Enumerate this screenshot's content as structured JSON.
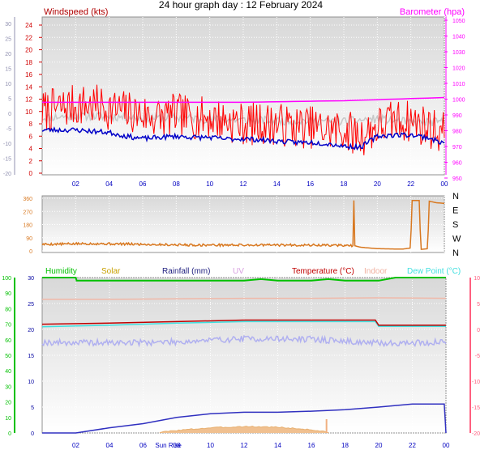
{
  "title": "24 hour graph day : 12 February 2024",
  "colors": {
    "windspeed": "#ff0000",
    "gust": "#c8c8c8",
    "avg_wind": "#0000c8",
    "barometer": "#ff00ff",
    "direction": "#d87820",
    "humidity": "#00c000",
    "solar": "#c8a000",
    "rainfall": "#4040c8",
    "uv": "#d8a0e0",
    "temperature": "#d00000",
    "indoor": "#f0b0a0",
    "dew_point": "#40e0e0",
    "left_axis": "#00c000",
    "right_axis": "#ff6080"
  },
  "x_ticks": [
    "02",
    "04",
    "06",
    "08",
    "10",
    "12",
    "14",
    "16",
    "18",
    "20",
    "22",
    "00"
  ],
  "sunrise_label": "Sun Rise",
  "chart_data": [
    {
      "type": "line",
      "title": "",
      "legend": [
        "Windspeed (kts)",
        "Barometer (hpa)"
      ],
      "y_left": {
        "ticks": [
          0,
          2,
          4,
          6,
          8,
          10,
          12,
          14,
          16,
          18,
          20,
          22,
          24
        ]
      },
      "y_left_outer": {
        "ticks": [
          -20,
          -15,
          -10,
          -5,
          0,
          5,
          10,
          15,
          20,
          25,
          30
        ]
      },
      "y_right": {
        "label": "Barometer (hpa)",
        "ticks": [
          950,
          960,
          970,
          980,
          990,
          1000,
          1010,
          1020,
          1030,
          1040,
          1050
        ]
      },
      "series": [
        {
          "name": "Windspeed (kts)",
          "hours": [
            0,
            1,
            2,
            3,
            4,
            5,
            6,
            7,
            8,
            9,
            10,
            11,
            12,
            13,
            14,
            15,
            16,
            17,
            18,
            19,
            20,
            21,
            22,
            23,
            24
          ],
          "values": [
            10,
            10.5,
            11,
            11,
            10.5,
            10,
            9.5,
            9,
            9.5,
            9,
            9,
            8.5,
            8,
            8,
            8,
            7.5,
            7.5,
            7,
            7,
            6,
            7.5,
            8.5,
            8.5,
            7.5,
            6.5
          ]
        },
        {
          "hours": [
            0,
            2,
            4,
            6,
            8,
            10,
            12,
            14,
            16,
            18,
            20,
            22,
            24
          ],
          "values": [
            9,
            9.3,
            9.2,
            9,
            9,
            8.8,
            8.6,
            8.5,
            8.5,
            8.4,
            8.8,
            8.2,
            8.3
          ]
        },
        {
          "hours": [
            0,
            1,
            2,
            3,
            4,
            5,
            6,
            7,
            8,
            9,
            10,
            11,
            12,
            13,
            14,
            15,
            16,
            17,
            18,
            19,
            20,
            21,
            22,
            23,
            24
          ],
          "values": [
            7,
            7,
            7,
            6.8,
            6.6,
            6,
            5.6,
            5.8,
            6,
            5.8,
            5.8,
            5.5,
            5.6,
            5.4,
            5.2,
            5,
            5,
            4.8,
            4.4,
            4.2,
            6,
            6.2,
            6.2,
            5.8,
            4.8
          ]
        },
        {
          "name": "Barometer (hpa)",
          "hours": [
            0,
            6,
            12,
            18,
            24
          ],
          "values": [
            998,
            998,
            998,
            999,
            1001
          ]
        }
      ]
    },
    {
      "type": "line",
      "title": "",
      "y_left": {
        "ticks": [
          0,
          90,
          180,
          270,
          360
        ]
      },
      "y_right": {
        "ticks": [
          "N",
          "W",
          "S",
          "E",
          "N"
        ]
      },
      "series": [
        {
          "hours": [
            0,
            3,
            6,
            9,
            12,
            15,
            18,
            18.55,
            18.6,
            18.65,
            19,
            20,
            21.5,
            22,
            22.05,
            22.5,
            22.6,
            23,
            23.1,
            23.5,
            24
          ],
          "values": [
            45,
            50,
            45,
            40,
            40,
            40,
            38,
            35,
            345,
            35,
            25,
            15,
            12,
            20,
            345,
            345,
            10,
            15,
            340,
            330,
            325
          ]
        }
      ]
    },
    {
      "type": "line",
      "title": "",
      "legend": [
        "Humidity",
        "Solar",
        "Rainfall (mm)",
        "UV",
        "Temperature (°C)",
        "Indoor",
        "Dew Point (°C)"
      ],
      "y_left_outer": {
        "ticks": [
          0,
          10,
          20,
          30,
          40,
          50,
          60,
          70,
          80,
          90,
          100
        ]
      },
      "y_left": {
        "ticks": [
          0,
          5,
          10,
          15,
          20,
          25,
          30
        ]
      },
      "y_right": {
        "ticks": [
          -20,
          -15,
          -10,
          -5,
          0,
          5,
          10
        ]
      },
      "series": [
        {
          "name": "Humidity",
          "hours": [
            0,
            2,
            2.05,
            8,
            12,
            13,
            14,
            16,
            17,
            18,
            20,
            20.5,
            21,
            24
          ],
          "values": [
            100,
            100,
            98,
            98,
            98,
            99,
            98,
            98,
            99,
            98,
            98,
            99,
            100,
            100
          ]
        },
        {
          "name": "Temperature (°C)",
          "hours": [
            0,
            4,
            8,
            12,
            16,
            19,
            19.8,
            20,
            24
          ],
          "values": [
            1,
            1.2,
            1.5,
            1.8,
            1.8,
            1.8,
            1.8,
            0.8,
            0.8
          ]
        },
        {
          "name": "Dew Point (°C)",
          "hours": [
            0,
            4,
            8,
            12,
            16,
            19,
            19.8,
            20,
            24
          ],
          "values": [
            0.5,
            0.8,
            1.2,
            1.5,
            1.5,
            1.5,
            1.5,
            0.6,
            0.6
          ]
        },
        {
          "name": "Indoor",
          "hours": [
            0,
            4,
            8,
            12,
            16,
            20,
            24
          ],
          "values": [
            5.8,
            5.8,
            5.9,
            6,
            6,
            6.1,
            6
          ]
        },
        {
          "name": "Rainfall (mm)",
          "hours": [
            0,
            2,
            4,
            6,
            8,
            10,
            12,
            14,
            16,
            18,
            20,
            21,
            22,
            23,
            23.9,
            24
          ],
          "values": [
            0,
            0,
            1,
            1.8,
            3,
            3.7,
            4,
            4,
            4.2,
            4.5,
            5,
            5.3,
            5.6,
            5.6,
            5.6,
            0
          ]
        },
        {
          "name": "UV",
          "hours": [
            0,
            4,
            8,
            12,
            16,
            20,
            24
          ],
          "values": [
            -2.5,
            -2.6,
            -2.4,
            -1.8,
            -1.9,
            -2.7,
            -2.5
          ]
        },
        {
          "name": "Solar",
          "hours": [
            7,
            8,
            10,
            12,
            14,
            16,
            17
          ],
          "values": [
            0,
            0.3,
            0.7,
            0.9,
            0.8,
            0.4,
            0
          ]
        }
      ]
    }
  ]
}
